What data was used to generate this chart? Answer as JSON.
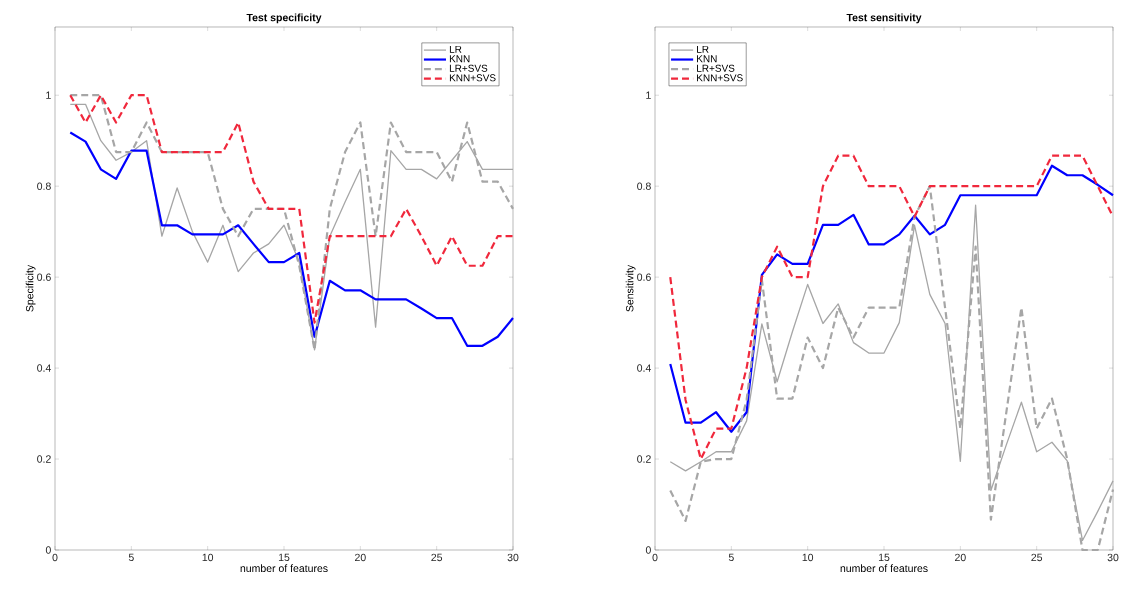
{
  "chart_data": [
    {
      "type": "line",
      "title": "Test specificity",
      "xlabel": "number of features",
      "ylabel": "Specificity",
      "x": [
        1,
        2,
        3,
        4,
        5,
        6,
        7,
        8,
        9,
        10,
        11,
        12,
        13,
        14,
        15,
        16,
        17,
        18,
        19,
        20,
        21,
        22,
        23,
        24,
        25,
        26,
        27,
        28,
        29,
        30
      ],
      "series": [
        {
          "name": "LR",
          "color": "#a6a6a6",
          "line_style": "solid",
          "values": [
            0.98,
            0.98,
            0.9,
            0.857,
            0.875,
            0.9,
            0.69,
            0.796,
            0.7,
            0.633,
            0.714,
            0.612,
            0.653,
            0.673,
            0.714,
            0.633,
            0.44,
            0.69,
            0.765,
            0.837,
            0.49,
            0.878,
            0.837,
            0.837,
            0.816,
            0.857,
            0.898,
            0.837,
            0.837,
            0.837
          ]
        },
        {
          "name": "KNN",
          "color": "#0000ff",
          "line_style": "solid",
          "values": [
            0.918,
            0.898,
            0.837,
            0.816,
            0.878,
            0.878,
            0.714,
            0.714,
            0.694,
            0.694,
            0.694,
            0.714,
            0.673,
            0.633,
            0.633,
            0.653,
            0.469,
            0.592,
            0.571,
            0.571,
            0.551,
            0.551,
            0.551,
            0.531,
            0.51,
            0.51,
            0.449,
            0.449,
            0.469,
            0.51
          ]
        },
        {
          "name": "LR+SVS",
          "color": "#a6a6a6",
          "line_style": "dashed",
          "values": [
            1,
            1,
            1,
            0.875,
            0.875,
            0.94,
            0.875,
            0.875,
            0.875,
            0.875,
            0.75,
            0.69,
            0.75,
            0.75,
            0.75,
            0.625,
            0.44,
            0.75,
            0.875,
            0.94,
            0.69,
            0.94,
            0.875,
            0.875,
            0.875,
            0.81,
            0.94,
            0.81,
            0.81,
            0.75
          ]
        },
        {
          "name": "KNN+SVS",
          "color": "#f0283c",
          "line_style": "dashed",
          "values": [
            1,
            0.94,
            1,
            0.94,
            1,
            1,
            0.875,
            0.875,
            0.875,
            0.875,
            0.875,
            0.94,
            0.81,
            0.75,
            0.75,
            0.75,
            0.5,
            0.69,
            0.69,
            0.69,
            0.69,
            0.69,
            0.75,
            0.69,
            0.625,
            0.69,
            0.625,
            0.625,
            0.69,
            0.69
          ]
        }
      ],
      "xlim": [
        0,
        30
      ],
      "ylim": [
        0,
        1.15
      ],
      "xticks": [
        0,
        5,
        10,
        15,
        20,
        25,
        30
      ],
      "yticks": [
        0,
        0.2,
        0.4,
        0.6,
        0.8,
        1
      ],
      "legend": "top right"
    },
    {
      "type": "line",
      "title": "Test sensitivity",
      "xlabel": "number of features",
      "ylabel": "Sensitivity",
      "x": [
        1,
        2,
        3,
        4,
        5,
        6,
        7,
        8,
        9,
        10,
        11,
        12,
        13,
        14,
        15,
        16,
        17,
        18,
        19,
        20,
        21,
        22,
        23,
        24,
        25,
        26,
        27,
        28,
        29,
        30
      ],
      "series": [
        {
          "name": "LR",
          "color": "#a6a6a6",
          "line_style": "solid",
          "values": [
            0.194,
            0.174,
            0.194,
            0.216,
            0.216,
            0.284,
            0.497,
            0.37,
            0.48,
            0.584,
            0.498,
            0.541,
            0.456,
            0.433,
            0.433,
            0.5,
            0.714,
            0.562,
            0.498,
            0.195,
            0.758,
            0.131,
            0.23,
            0.325,
            0.216,
            0.237,
            0.196,
            0.021,
            0.085,
            0.152
          ]
        },
        {
          "name": "KNN",
          "color": "#0000ff",
          "line_style": "solid",
          "values": [
            0.409,
            0.28,
            0.28,
            0.303,
            0.26,
            0.303,
            0.605,
            0.65,
            0.629,
            0.629,
            0.715,
            0.715,
            0.737,
            0.672,
            0.672,
            0.694,
            0.735,
            0.694,
            0.715,
            0.78,
            0.78,
            0.78,
            0.78,
            0.78,
            0.78,
            0.845,
            0.824,
            0.824,
            0.803,
            0.78
          ]
        },
        {
          "name": "LR+SVS",
          "color": "#a6a6a6",
          "line_style": "dashed",
          "values": [
            0.131,
            0.064,
            0.194,
            0.2,
            0.2,
            0.33,
            0.594,
            0.333,
            0.333,
            0.467,
            0.4,
            0.533,
            0.467,
            0.533,
            0.533,
            0.533,
            0.733,
            0.8,
            0.533,
            0.267,
            0.667,
            0.067,
            0.3,
            0.533,
            0.267,
            0.333,
            0.2,
            0,
            0,
            0.133
          ]
        },
        {
          "name": "KNN+SVS",
          "color": "#f0283c",
          "line_style": "dashed",
          "values": [
            0.6,
            0.33,
            0.2,
            0.267,
            0.267,
            0.4,
            0.6,
            0.667,
            0.6,
            0.6,
            0.8,
            0.867,
            0.867,
            0.8,
            0.8,
            0.8,
            0.733,
            0.8,
            0.8,
            0.8,
            0.8,
            0.8,
            0.8,
            0.8,
            0.8,
            0.867,
            0.867,
            0.867,
            0.8,
            0.733
          ]
        }
      ],
      "xlim": [
        0,
        30
      ],
      "ylim": [
        0,
        1.15
      ],
      "xticks": [
        0,
        5,
        10,
        15,
        20,
        25,
        30
      ],
      "yticks": [
        0,
        0.2,
        0.4,
        0.6,
        0.8,
        1
      ],
      "legend": "top left"
    }
  ]
}
